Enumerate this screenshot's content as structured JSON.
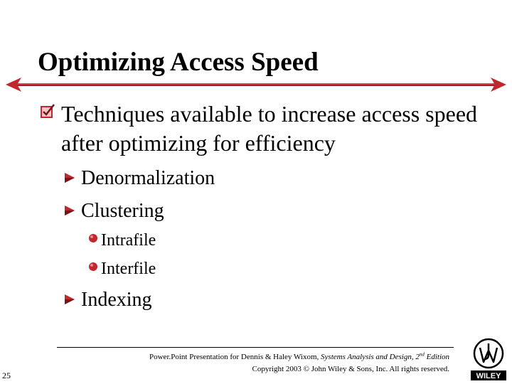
{
  "slide": {
    "title": "Optimizing Access Speed",
    "level1": {
      "text": "Techniques available to increase access speed after optimizing for efficiency",
      "icon": "checkbox-bullet-icon"
    },
    "level2": [
      {
        "text": "Denormalization",
        "icon": "arrow-bullet-icon"
      },
      {
        "text": "Clustering",
        "icon": "arrow-bullet-icon"
      },
      {
        "text": "Indexing",
        "icon": "arrow-bullet-icon"
      }
    ],
    "level3": [
      {
        "text": "Intrafile",
        "icon": "dot-bullet-icon"
      },
      {
        "text": "Interfile",
        "icon": "dot-bullet-icon"
      }
    ]
  },
  "footer": {
    "slide_number": "25",
    "credit_prefix": "Power.Point Presentation for Dennis & Haley Wixom, ",
    "credit_book": "Systems Analysis and Design, 2",
    "credit_sup": "nd",
    "credit_edition": " Edition",
    "copyright": "Copyright 2003 © John Wiley & Sons, Inc.  All rights reserved.",
    "logo_text": "WILEY"
  },
  "colors": {
    "accent": "#c0282d",
    "arrow_dark": "#7a1418",
    "text": "#000000"
  }
}
